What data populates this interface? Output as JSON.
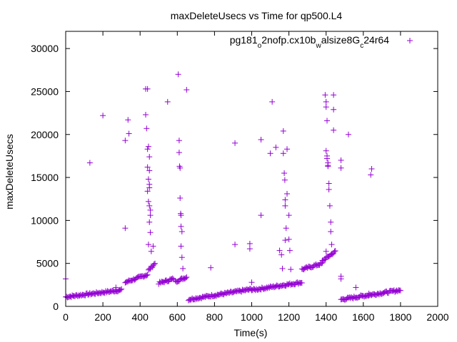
{
  "chart_data": {
    "type": "scatter",
    "title": "maxDeleteUsecs vs Time for qp500.L4",
    "xlabel": "Time(s)",
    "ylabel": "maxDeleteUsecs",
    "xlim": [
      0,
      2000
    ],
    "ylim": [
      0,
      32000
    ],
    "xticks": [
      "0",
      "200",
      "400",
      "600",
      "800",
      "1000",
      "1200",
      "1400",
      "1600",
      "1800",
      "2000"
    ],
    "yticks": [
      "0",
      "5000",
      "10000",
      "15000",
      "20000",
      "25000",
      "30000"
    ],
    "marker": "+",
    "color": "#9400d3",
    "legend_position": "top-right",
    "series": [
      {
        "name": "pg181_o2nofp.cx10b_walsize8G_c24r64",
        "legend_parts": [
          {
            "t": "pg181",
            "s": 0
          },
          {
            "t": "o",
            "s": 1
          },
          {
            "t": "2nofp.cx10b",
            "s": 0
          },
          {
            "t": "w",
            "s": 1
          },
          {
            "t": "alsize8G",
            "s": 0
          },
          {
            "t": "c",
            "s": 1
          },
          {
            "t": "24r64",
            "s": 0
          }
        ],
        "segments": [
          {
            "x0": 0,
            "x1": 300,
            "y0": 1100,
            "y1": 1900,
            "step": 5
          },
          {
            "x0": 320,
            "x1": 440,
            "y0": 2800,
            "y1": 3700,
            "step": 5
          },
          {
            "x0": 445,
            "x1": 480,
            "y0": 4200,
            "y1": 5000,
            "step": 5
          },
          {
            "x0": 500,
            "x1": 580,
            "y0": 2700,
            "y1": 3200,
            "step": 5
          },
          {
            "x0": 590,
            "x1": 650,
            "y0": 2900,
            "y1": 3400,
            "step": 5
          },
          {
            "x0": 660,
            "x1": 1000,
            "y0": 800,
            "y1": 2000,
            "step": 5
          },
          {
            "x0": 1000,
            "x1": 1270,
            "y0": 1900,
            "y1": 2800,
            "step": 5
          },
          {
            "x0": 1270,
            "x1": 1380,
            "y0": 4300,
            "y1": 5000,
            "step": 5
          },
          {
            "x0": 1380,
            "x1": 1450,
            "y0": 5300,
            "y1": 6400,
            "step": 5
          },
          {
            "x0": 1480,
            "x1": 1800,
            "y0": 800,
            "y1": 1900,
            "step": 5
          }
        ],
        "points": [
          [
            0,
            3200
          ],
          [
            130,
            16700
          ],
          [
            200,
            22200
          ],
          [
            270,
            2200
          ],
          [
            320,
            9100
          ],
          [
            320,
            19300
          ],
          [
            335,
            21700
          ],
          [
            340,
            20100
          ],
          [
            430,
            22300
          ],
          [
            430,
            25300
          ],
          [
            440,
            25300
          ],
          [
            435,
            20700
          ],
          [
            440,
            18300
          ],
          [
            445,
            18600
          ],
          [
            450,
            17400
          ],
          [
            450,
            15800
          ],
          [
            445,
            14800
          ],
          [
            450,
            14200
          ],
          [
            440,
            13400
          ],
          [
            445,
            12200
          ],
          [
            450,
            11700
          ],
          [
            455,
            10600
          ],
          [
            450,
            9800
          ],
          [
            455,
            8600
          ],
          [
            445,
            7200
          ],
          [
            460,
            6400
          ],
          [
            470,
            7000
          ],
          [
            440,
            16200
          ],
          [
            450,
            13800
          ],
          [
            455,
            11200
          ],
          [
            548,
            23800
          ],
          [
            605,
            27000
          ],
          [
            610,
            19300
          ],
          [
            610,
            17900
          ],
          [
            612,
            16300
          ],
          [
            615,
            16100
          ],
          [
            615,
            12600
          ],
          [
            618,
            10800
          ],
          [
            620,
            10600
          ],
          [
            620,
            9300
          ],
          [
            625,
            8700
          ],
          [
            620,
            7000
          ],
          [
            625,
            5700
          ],
          [
            630,
            4400
          ],
          [
            650,
            25200
          ],
          [
            780,
            4500
          ],
          [
            910,
            19000
          ],
          [
            910,
            7200
          ],
          [
            990,
            7300
          ],
          [
            990,
            6700
          ],
          [
            1000,
            2800
          ],
          [
            1050,
            19400
          ],
          [
            1050,
            10600
          ],
          [
            1100,
            17800
          ],
          [
            1110,
            23800
          ],
          [
            1130,
            18500
          ],
          [
            1150,
            6500
          ],
          [
            1160,
            6000
          ],
          [
            1165,
            4400
          ],
          [
            1170,
            20400
          ],
          [
            1170,
            17800
          ],
          [
            1175,
            15500
          ],
          [
            1178,
            14700
          ],
          [
            1180,
            12400
          ],
          [
            1180,
            11700
          ],
          [
            1185,
            9100
          ],
          [
            1180,
            7700
          ],
          [
            1190,
            18300
          ],
          [
            1190,
            13100
          ],
          [
            1200,
            10600
          ],
          [
            1200,
            7800
          ],
          [
            1205,
            6500
          ],
          [
            1210,
            4300
          ],
          [
            1395,
            24600
          ],
          [
            1400,
            23800
          ],
          [
            1400,
            23200
          ],
          [
            1405,
            21600
          ],
          [
            1400,
            18100
          ],
          [
            1405,
            17500
          ],
          [
            1405,
            17200
          ],
          [
            1410,
            16700
          ],
          [
            1410,
            16400
          ],
          [
            1410,
            16300
          ],
          [
            1415,
            14300
          ],
          [
            1415,
            13600
          ],
          [
            1420,
            11700
          ],
          [
            1425,
            9800
          ],
          [
            1425,
            8700
          ],
          [
            1430,
            7200
          ],
          [
            1400,
            6400
          ],
          [
            1440,
            24600
          ],
          [
            1440,
            22900
          ],
          [
            1440,
            20500
          ],
          [
            1480,
            17000
          ],
          [
            1480,
            16100
          ],
          [
            1480,
            3500
          ],
          [
            1480,
            3200
          ],
          [
            1520,
            20000
          ],
          [
            1640,
            15300
          ],
          [
            1645,
            16000
          ],
          [
            1560,
            2200
          ],
          [
            1630,
            1500
          ]
        ]
      }
    ]
  }
}
